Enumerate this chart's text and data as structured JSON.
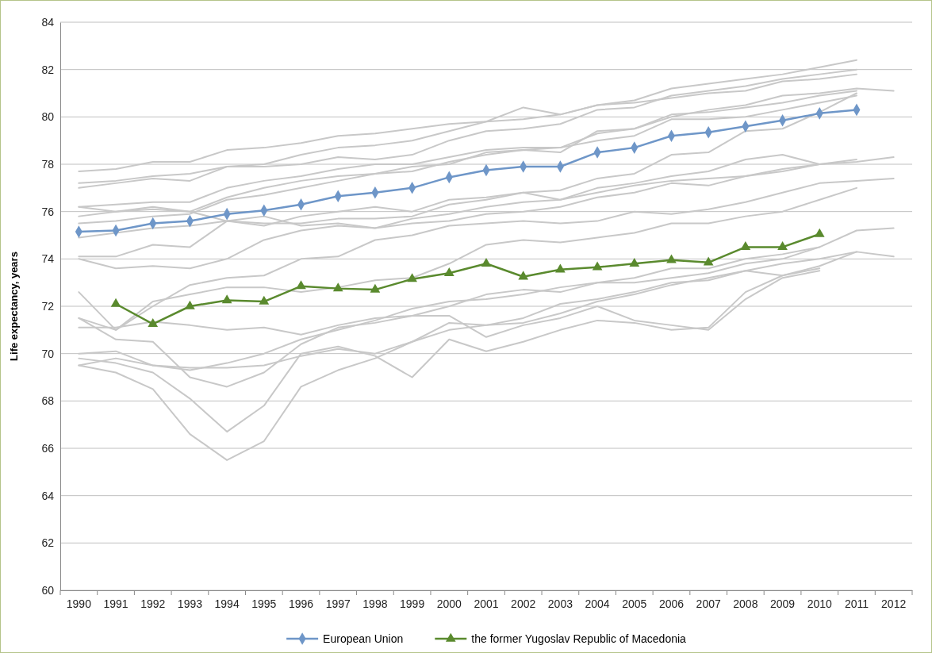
{
  "chart_data": {
    "type": "line",
    "ylabel": "Life expectancy, years",
    "categories": [
      "1990",
      "1991",
      "1992",
      "1993",
      "1994",
      "1995",
      "1996",
      "1997",
      "1998",
      "1999",
      "2000",
      "2001",
      "2002",
      "2003",
      "2004",
      "2005",
      "2006",
      "2007",
      "2008",
      "2009",
      "2010",
      "2011",
      "2012"
    ],
    "ylim": [
      60,
      84
    ],
    "yticks": [
      60,
      62,
      64,
      66,
      68,
      70,
      72,
      74,
      76,
      78,
      80,
      82,
      84
    ],
    "grid": "y",
    "legend": "bottom",
    "series": [
      {
        "color": "#c8c8c8",
        "marker": "none",
        "values": [
          77.7,
          77.8,
          78.1,
          78.1,
          78.6,
          78.7,
          78.9,
          79.2,
          79.3,
          79.5,
          79.7,
          79.8,
          79.9,
          80.1,
          80.5,
          80.6,
          80.8,
          81.0,
          81.1,
          81.5,
          81.6,
          81.8,
          null
        ]
      },
      {
        "color": "#c8c8c8",
        "marker": "none",
        "values": [
          77.2,
          77.3,
          77.5,
          77.6,
          77.9,
          78.0,
          78.4,
          78.7,
          78.8,
          79.0,
          79.4,
          79.8,
          80.4,
          80.1,
          80.5,
          80.7,
          81.2,
          81.4,
          81.6,
          81.8,
          82.1,
          82.4,
          null
        ]
      },
      {
        "color": "#c8c8c8",
        "marker": "none",
        "values": [
          77.0,
          77.2,
          77.4,
          77.3,
          77.9,
          77.9,
          78.0,
          78.3,
          78.2,
          78.4,
          79.0,
          79.4,
          79.5,
          79.7,
          80.3,
          80.4,
          80.9,
          81.1,
          81.3,
          81.6,
          81.8,
          82.0,
          null
        ]
      },
      {
        "color": "#c8c8c8",
        "marker": "none",
        "values": [
          76.2,
          76.3,
          76.4,
          76.4,
          77.0,
          77.3,
          77.5,
          77.8,
          78.0,
          78.0,
          78.3,
          78.6,
          78.7,
          78.7,
          79.3,
          79.5,
          80.0,
          80.3,
          80.5,
          80.9,
          81.0,
          81.2,
          81.1
        ]
      },
      {
        "color": "#c8c8c8",
        "marker": "none",
        "values": [
          75.8,
          76.0,
          76.2,
          76.0,
          76.6,
          77.0,
          77.3,
          77.5,
          77.6,
          77.9,
          78.0,
          78.5,
          78.6,
          78.5,
          79.4,
          79.5,
          80.1,
          80.2,
          80.4,
          80.6,
          80.9,
          81.1,
          null
        ]
      },
      {
        "color": "#c8c8c8",
        "marker": "none",
        "values": [
          75.5,
          75.6,
          75.8,
          75.9,
          76.5,
          76.7,
          77.0,
          77.3,
          77.6,
          77.7,
          78.1,
          78.4,
          78.6,
          78.7,
          79.0,
          79.2,
          79.9,
          79.9,
          80.0,
          80.3,
          80.6,
          80.9,
          null
        ]
      },
      {
        "color": "#c8c8c8",
        "marker": "none",
        "values": [
          74.9,
          75.1,
          75.3,
          75.4,
          75.6,
          75.4,
          75.8,
          76.0,
          76.2,
          76.0,
          76.5,
          76.6,
          76.8,
          76.9,
          77.4,
          77.6,
          78.4,
          78.5,
          79.4,
          79.5,
          80.2,
          81.0,
          null
        ]
      },
      {
        "color": "#c8c8c8",
        "marker": "none",
        "values": [
          76.2,
          76.0,
          76.1,
          76.0,
          75.6,
          75.5,
          75.5,
          75.7,
          75.7,
          75.8,
          76.3,
          76.5,
          76.8,
          76.5,
          77.0,
          77.2,
          77.5,
          77.7,
          78.2,
          78.4,
          78.0,
          null,
          null
        ]
      },
      {
        "color": "#c8c8c8",
        "marker": "none",
        "values": [
          74.1,
          74.1,
          74.6,
          74.5,
          75.6,
          75.8,
          75.4,
          75.5,
          75.3,
          75.7,
          75.9,
          76.2,
          76.4,
          76.5,
          76.8,
          77.1,
          77.3,
          77.4,
          77.5,
          77.7,
          78.0,
          78.1,
          78.3
        ]
      },
      {
        "color": "#c8c8c8",
        "marker": "none",
        "values": [
          74.0,
          73.6,
          73.7,
          73.6,
          74.0,
          74.8,
          75.2,
          75.4,
          75.3,
          75.5,
          75.6,
          75.9,
          76.0,
          76.2,
          76.6,
          76.8,
          77.2,
          77.1,
          77.5,
          77.8,
          78.0,
          78.2,
          null
        ]
      },
      {
        "color": "#c8c8c8",
        "marker": "none",
        "values": [
          71.5,
          71.0,
          72.0,
          72.9,
          73.2,
          73.3,
          74.0,
          74.1,
          74.8,
          75.0,
          75.4,
          75.5,
          75.6,
          75.5,
          75.6,
          76.0,
          75.9,
          76.1,
          76.4,
          76.8,
          77.2,
          77.3,
          77.4
        ]
      },
      {
        "color": "#c8c8c8",
        "marker": "none",
        "values": [
          72.6,
          71.0,
          72.2,
          72.5,
          72.8,
          72.8,
          72.6,
          72.8,
          73.1,
          73.2,
          73.8,
          74.6,
          74.8,
          74.7,
          74.9,
          75.1,
          75.5,
          75.5,
          75.8,
          76.0,
          76.5,
          77.0,
          null
        ]
      },
      {
        "color": "#c8c8c8",
        "marker": "none",
        "values": [
          71.1,
          71.1,
          71.35,
          71.2,
          71.0,
          71.1,
          70.8,
          71.2,
          71.5,
          71.6,
          72.0,
          72.5,
          72.7,
          72.6,
          73.0,
          73.0,
          73.2,
          73.4,
          73.8,
          74.0,
          74.5,
          75.2,
          75.3
        ]
      },
      {
        "color": "#c8c8c8",
        "marker": "none",
        "values": [
          70.0,
          70.1,
          69.5,
          69.4,
          69.4,
          69.5,
          69.9,
          70.2,
          70.0,
          70.5,
          71.3,
          71.2,
          71.5,
          72.1,
          72.3,
          72.6,
          73.0,
          73.1,
          73.5,
          73.8,
          74.0,
          74.3,
          74.1
        ]
      },
      {
        "color": "#c8c8c8",
        "marker": "none",
        "values": [
          69.5,
          69.2,
          68.5,
          66.6,
          65.5,
          66.3,
          68.6,
          69.3,
          69.8,
          70.5,
          71.0,
          71.2,
          71.3,
          71.7,
          72.2,
          72.5,
          72.9,
          73.2,
          73.5,
          73.3,
          73.6,
          null,
          null
        ]
      },
      {
        "color": "#c8c8c8",
        "marker": "none",
        "values": [
          69.8,
          69.6,
          69.2,
          68.1,
          66.7,
          67.8,
          70.0,
          70.3,
          69.9,
          69.0,
          70.6,
          70.1,
          70.5,
          71.0,
          71.4,
          71.3,
          71.0,
          71.1,
          72.6,
          73.3,
          73.7,
          74.3,
          null
        ]
      },
      {
        "color": "#c8c8c8",
        "marker": "none",
        "values": [
          71.5,
          70.6,
          70.5,
          69.0,
          68.6,
          69.2,
          70.4,
          71.1,
          71.3,
          71.6,
          71.6,
          70.7,
          71.2,
          71.5,
          72.0,
          71.4,
          71.2,
          71.0,
          72.3,
          73.2,
          73.5,
          null,
          null
        ]
      },
      {
        "color": "#c8c8c8",
        "marker": "none",
        "values": [
          69.5,
          69.8,
          69.5,
          69.3,
          69.6,
          70.0,
          70.6,
          71.0,
          71.4,
          71.9,
          72.2,
          72.3,
          72.5,
          72.8,
          73.0,
          73.2,
          73.6,
          73.6,
          74.0,
          74.2,
          74.5,
          null,
          null
        ]
      },
      {
        "name": "European Union",
        "color": "#6e96c8",
        "marker": "diamond",
        "values": [
          75.15,
          75.2,
          75.5,
          75.6,
          75.9,
          76.05,
          76.3,
          76.65,
          76.8,
          77.0,
          77.45,
          77.75,
          77.9,
          77.9,
          78.5,
          78.7,
          79.2,
          79.35,
          79.6,
          79.85,
          80.15,
          80.3,
          null
        ]
      },
      {
        "name": "the former Yugoslav Republic of Macedonia",
        "color": "#5a8a2e",
        "marker": "triangle",
        "values": [
          null,
          72.1,
          71.25,
          72.0,
          72.25,
          72.2,
          72.85,
          72.75,
          72.7,
          73.15,
          73.4,
          73.8,
          73.25,
          73.55,
          73.65,
          73.8,
          73.95,
          73.85,
          74.5,
          74.5,
          75.05,
          null,
          null
        ]
      }
    ]
  }
}
